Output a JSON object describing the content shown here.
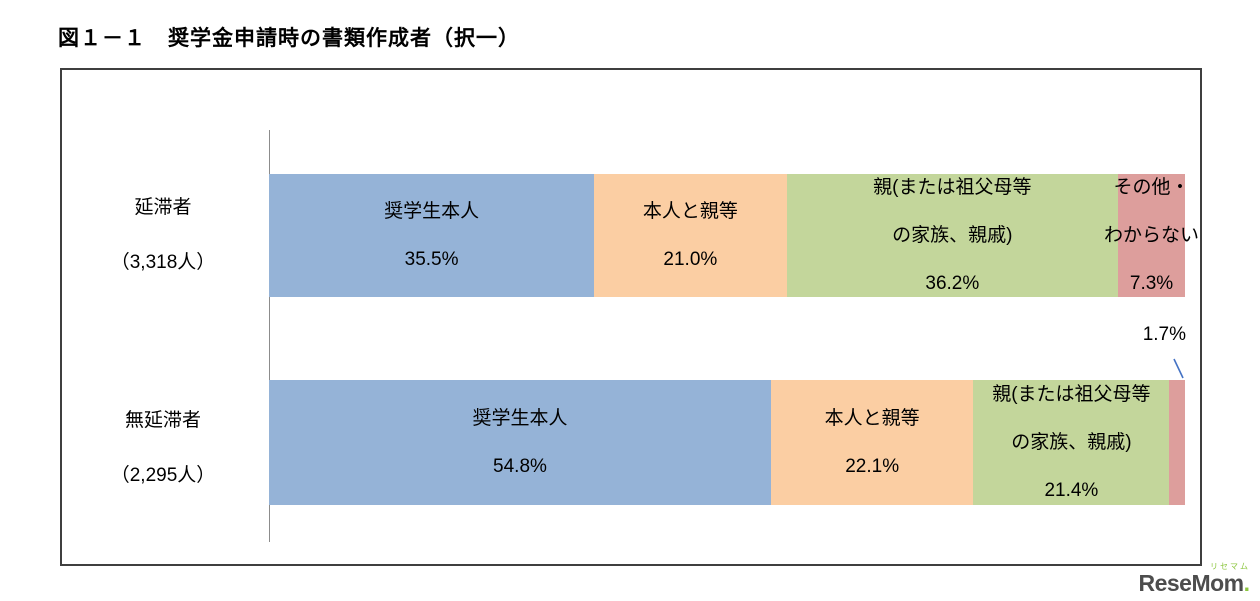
{
  "title": "図１－１　奨学金申請時の書類作成者（択一）",
  "chart_data": {
    "type": "bar",
    "stacked": true,
    "orientation": "horizontal",
    "title": "図１－１　奨学金申請時の書類作成者（択一）",
    "categories": [
      "延滞者（3,318人）",
      "無延滞者（2,295人）"
    ],
    "series": [
      {
        "name": "奨学生本人",
        "values": [
          35.5,
          54.8
        ]
      },
      {
        "name": "本人と親等",
        "values": [
          21.0,
          22.1
        ]
      },
      {
        "name": "親(または祖父母等の家族、親戚)",
        "values": [
          36.2,
          21.4
        ]
      },
      {
        "name": "その他・わからない",
        "values": [
          7.3,
          1.7
        ]
      }
    ],
    "colors": [
      "#95B3D7",
      "#FBCEA3",
      "#C3D69B",
      "#DD9E9C"
    ],
    "xlim": [
      0,
      100
    ],
    "legend": "none",
    "grid": false
  },
  "display": {
    "category_lines": [
      [
        "延滞者",
        "（3,318人）"
      ],
      [
        "無延滞者",
        "（2,295人）"
      ]
    ],
    "segment_labels": [
      [
        {
          "lines": [
            "奨学生本人"
          ],
          "value": "35.5%"
        },
        {
          "lines": [
            "本人と親等"
          ],
          "value": "21.0%"
        },
        {
          "lines": [
            "親(または祖父母等",
            "の家族、親戚)"
          ],
          "value": "36.2%"
        },
        {
          "lines": [
            "その他・",
            "わからない"
          ],
          "value": "7.3%"
        }
      ],
      [
        {
          "lines": [
            "奨学生本人"
          ],
          "value": "54.8%"
        },
        {
          "lines": [
            "本人と親等"
          ],
          "value": "22.1%"
        },
        {
          "lines": [
            "親(または祖父母等",
            "の家族、親戚)"
          ],
          "value": "21.4%"
        },
        null
      ]
    ],
    "callout": {
      "label": "1.7%",
      "row": 1,
      "segment": 3
    }
  },
  "watermark": {
    "sub": "リセマム",
    "brand": "ReseMom",
    "dot": "."
  }
}
